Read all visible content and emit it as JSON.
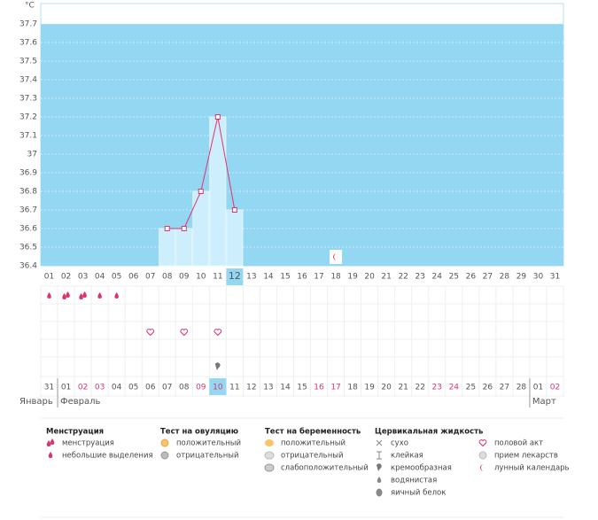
{
  "chart_data": {
    "type": "line",
    "y_unit": "°C",
    "categories": [
      "01",
      "02",
      "03",
      "04",
      "05",
      "06",
      "07",
      "08",
      "09",
      "10",
      "11",
      "12",
      "13",
      "14",
      "15",
      "16",
      "17",
      "18",
      "19",
      "20",
      "21",
      "22",
      "23",
      "24",
      "25",
      "26",
      "27",
      "28",
      "29",
      "30",
      "31"
    ],
    "series": [
      {
        "name": "temperature",
        "color": "#e0336e",
        "values": [
          null,
          null,
          null,
          null,
          null,
          null,
          null,
          36.6,
          36.6,
          36.8,
          37.2,
          36.7,
          null,
          null,
          null,
          null,
          null,
          null,
          null,
          null,
          null,
          null,
          null,
          null,
          null,
          null,
          null,
          null,
          null,
          null,
          null
        ]
      }
    ],
    "ylim": [
      36.4,
      37.8
    ],
    "yticks": [
      36.4,
      36.5,
      36.6,
      36.7,
      36.8,
      36.9,
      37,
      37.1,
      37.2,
      37.3,
      37.4,
      37.5,
      37.6,
      37.7
    ],
    "grid": true,
    "today_index": 11,
    "moon_days": [
      17
    ],
    "discharge": [
      "light",
      "heavy",
      "heavy",
      "light",
      "light",
      null,
      null,
      null,
      null,
      null,
      null,
      null,
      null,
      null,
      null,
      null,
      null,
      null,
      null,
      null,
      null,
      null,
      null,
      null,
      null,
      null,
      null,
      null,
      null,
      null,
      null
    ],
    "intercourse": [
      false,
      false,
      false,
      false,
      false,
      false,
      true,
      false,
      true,
      false,
      true,
      false,
      false,
      false,
      false,
      false,
      false,
      false,
      false,
      false,
      false,
      false,
      false,
      false,
      false,
      false,
      false,
      false,
      false,
      false,
      false
    ],
    "fluid": [
      null,
      null,
      null,
      null,
      null,
      null,
      null,
      null,
      null,
      null,
      "creamy",
      null,
      null,
      null,
      null,
      null,
      null,
      null,
      null,
      null,
      null,
      null,
      null,
      null,
      null,
      null,
      null,
      null,
      null,
      null,
      null
    ],
    "dates": [
      "31",
      "01",
      "02",
      "03",
      "04",
      "05",
      "06",
      "07",
      "08",
      "09",
      "10",
      "11",
      "12",
      "13",
      "14",
      "15",
      "16",
      "17",
      "18",
      "19",
      "20",
      "21",
      "22",
      "23",
      "24",
      "25",
      "26",
      "27",
      "28",
      "01",
      "02"
    ],
    "weekend": [
      false,
      false,
      true,
      true,
      false,
      false,
      false,
      false,
      false,
      true,
      true,
      false,
      false,
      false,
      false,
      false,
      true,
      true,
      false,
      false,
      false,
      false,
      false,
      true,
      true,
      false,
      false,
      false,
      false,
      false,
      true
    ],
    "months": [
      {
        "label": "Январь",
        "start": 0
      },
      {
        "label": "Февраль",
        "start": 1
      },
      {
        "label": "Март",
        "start": 29
      }
    ]
  },
  "legend": [
    {
      "title": "Менструация",
      "items": [
        {
          "label": "менструация",
          "icon": "heavy"
        },
        {
          "label": "небольшие выделения",
          "icon": "light"
        }
      ]
    },
    {
      "title": "Тест на овуляцию",
      "items": [
        {
          "label": "положительный",
          "icon": "ov-pos"
        },
        {
          "label": "отрицательный",
          "icon": "ov-neg"
        }
      ]
    },
    {
      "title": "Тест на беременность",
      "items": [
        {
          "label": "положительный",
          "icon": "pr-pos"
        },
        {
          "label": "отрицательный",
          "icon": "pr-neg"
        },
        {
          "label": "слабоположительный",
          "icon": "pr-weak"
        }
      ]
    },
    {
      "title": "Цервикальная жидкость",
      "items": [
        {
          "label": "сухо",
          "icon": "dry"
        },
        {
          "label": "клейкая",
          "icon": "sticky"
        },
        {
          "label": "кремообразная",
          "icon": "creamy"
        },
        {
          "label": "водянистая",
          "icon": "watery"
        },
        {
          "label": "яичный белок",
          "icon": "egg"
        }
      ]
    },
    {
      "items": [
        {
          "label": "половой акт",
          "icon": "heart"
        },
        {
          "label": "прием лекарств",
          "icon": "pill"
        },
        {
          "label": "лунный календарь",
          "icon": "moon"
        }
      ]
    }
  ]
}
